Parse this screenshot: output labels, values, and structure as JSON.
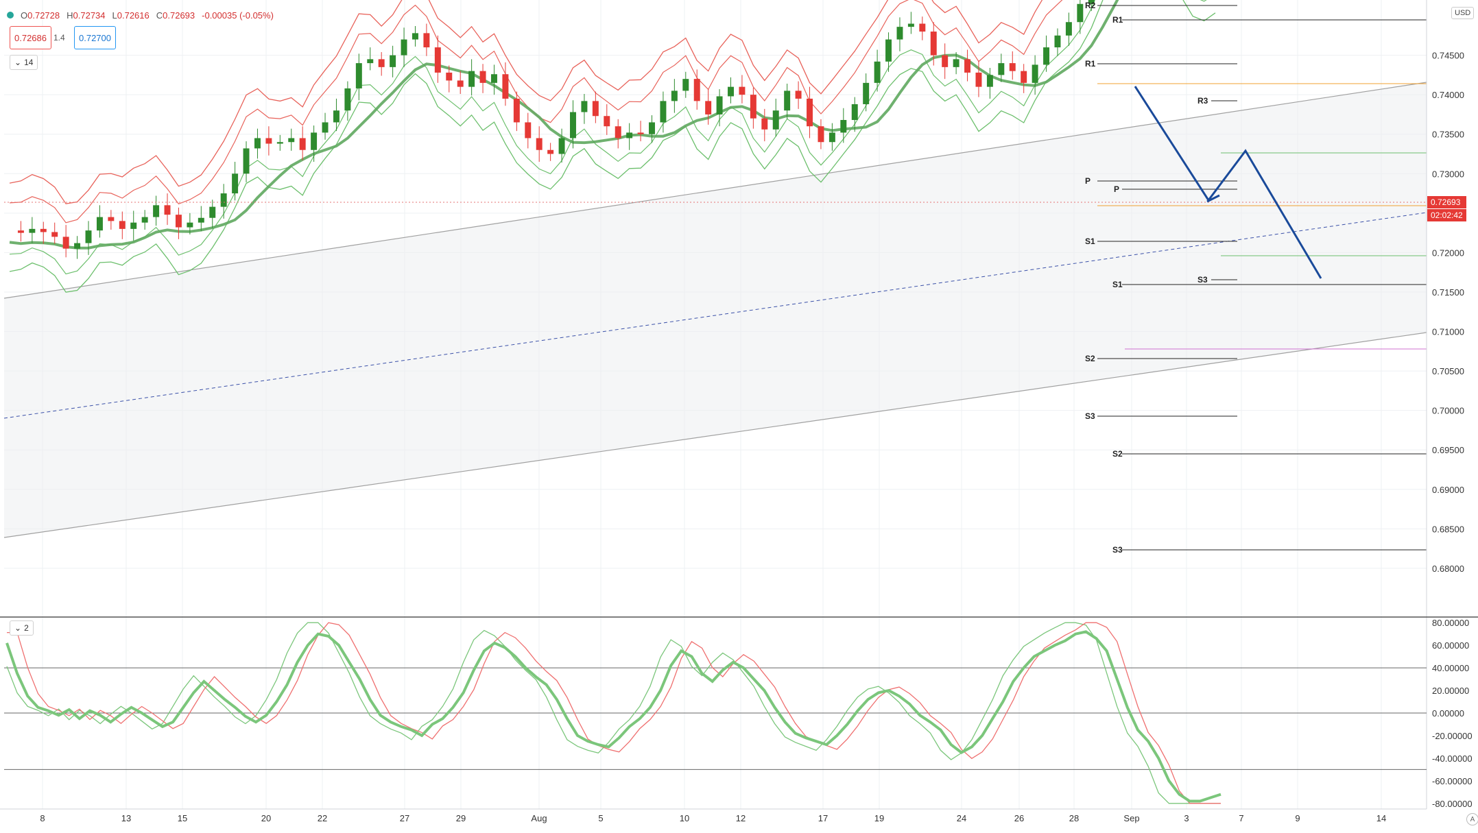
{
  "ohlc": {
    "o_label": "O",
    "o": "0.72728",
    "h_label": "H",
    "h": "0.72734",
    "l_label": "L",
    "l": "0.72616",
    "c_label": "C",
    "c": "0.72693",
    "change": "-0.00035 (-0.05%)"
  },
  "trade": {
    "sell": "0.72686",
    "spread": "1.4",
    "buy": "0.72700"
  },
  "indicator_labels": {
    "main": "14",
    "oscillator": "2"
  },
  "currency": "USD",
  "auto_label": "A",
  "colors": {
    "up": "#2e8b2e",
    "down": "#e53935",
    "channel": "#a0a0a0",
    "band_upper": "#e8625a",
    "band_lower": "#6cbf6c",
    "forecast": "#1a4a9a",
    "pivot": "#222222"
  },
  "chart_data": [
    {
      "type": "candlestick",
      "ylim": [
        0.674,
        0.752
      ],
      "yticks": [
        "0.74500",
        "0.74000",
        "0.73500",
        "0.73000",
        "0.72500",
        "0.72000",
        "0.71500",
        "0.71000",
        "0.70500",
        "0.70000",
        "0.69500",
        "0.69000",
        "0.68500",
        "0.68000"
      ],
      "ytick_values": [
        0.745,
        0.74,
        0.735,
        0.73,
        0.725,
        0.72,
        0.715,
        0.71,
        0.705,
        0.7,
        0.695,
        0.69,
        0.685,
        0.68
      ],
      "xticks": [
        "8",
        "13",
        "15",
        "20",
        "22",
        "27",
        "29",
        "Aug",
        "5",
        "10",
        "12",
        "17",
        "19",
        "24",
        "26",
        "28",
        "Sep",
        "3",
        "7",
        "9",
        "14"
      ],
      "last_price": "0.72693",
      "countdown": "02:02:42",
      "pivot_labels": [
        "R2",
        "R1",
        "R1",
        "R3",
        "P",
        "P",
        "S1",
        "S1",
        "S3",
        "S2",
        "S3",
        "S2",
        "S3"
      ],
      "trend_points": [
        0.7228,
        0.7225,
        0.723,
        0.7226,
        0.722,
        0.7205,
        0.7212,
        0.7228,
        0.7245,
        0.724,
        0.723,
        0.7238,
        0.7245,
        0.726,
        0.7248,
        0.7232,
        0.7238,
        0.7244,
        0.7258,
        0.7275,
        0.73,
        0.7332,
        0.7345,
        0.7338,
        0.734,
        0.7345,
        0.733,
        0.7352,
        0.7365,
        0.738,
        0.7408,
        0.744,
        0.7445,
        0.7435,
        0.745,
        0.747,
        0.7478,
        0.746,
        0.7428,
        0.7418,
        0.741,
        0.743,
        0.7415,
        0.7426,
        0.7395,
        0.7365,
        0.7345,
        0.733,
        0.7325,
        0.7345,
        0.7378,
        0.7392,
        0.7373,
        0.736,
        0.7345,
        0.7352,
        0.735,
        0.7365,
        0.7392,
        0.7405,
        0.742,
        0.7392,
        0.7375,
        0.7398,
        0.741,
        0.74,
        0.737,
        0.7356,
        0.738,
        0.7405,
        0.7395,
        0.736,
        0.734,
        0.7352,
        0.7368,
        0.7388,
        0.7415,
        0.7442,
        0.747,
        0.7486,
        0.749,
        0.748,
        0.745,
        0.7435,
        0.7445,
        0.7428,
        0.741,
        0.7425,
        0.744,
        0.743,
        0.7415,
        0.7438,
        0.746,
        0.7475,
        0.7492,
        0.7515,
        0.7545,
        0.758,
        0.762,
        0.765,
        0.7668,
        0.764,
        0.762,
        0.759,
        0.758,
        0.756,
        0.7554,
        0.756
      ]
    },
    {
      "type": "line",
      "ylim": [
        -85,
        85
      ],
      "yticks": [
        "80.00000",
        "60.00000",
        "40.00000",
        "20.00000",
        "0.00000",
        "-20.00000",
        "-40.00000",
        "-60.00000",
        "-80.00000"
      ],
      "ytick_values": [
        80,
        60,
        40,
        20,
        0,
        -20,
        -40,
        -60,
        -80
      ],
      "levels": [
        40,
        0,
        -50
      ],
      "series_points": [
        62,
        35,
        15,
        5,
        2,
        -2,
        3,
        -5,
        2,
        -2,
        -8,
        -1,
        5,
        0,
        -6,
        -12,
        -8,
        5,
        18,
        28,
        20,
        12,
        5,
        -3,
        -8,
        -2,
        10,
        25,
        45,
        60,
        70,
        68,
        60,
        45,
        30,
        12,
        -2,
        -8,
        -12,
        -15,
        -20,
        -10,
        -5,
        5,
        18,
        38,
        55,
        62,
        58,
        50,
        40,
        32,
        25,
        12,
        -5,
        -20,
        -25,
        -28,
        -30,
        -22,
        -12,
        -5,
        5,
        20,
        42,
        55,
        50,
        35,
        28,
        38,
        45,
        40,
        30,
        20,
        5,
        -8,
        -18,
        -22,
        -25,
        -28,
        -20,
        -10,
        2,
        12,
        18,
        20,
        15,
        8,
        -2,
        -8,
        -15,
        -28,
        -35,
        -30,
        -20,
        -5,
        10,
        28,
        40,
        50,
        55,
        60,
        64,
        70,
        72,
        66,
        55,
        30,
        5,
        -15,
        -25,
        -40,
        -60,
        -72,
        -78,
        -78,
        -75,
        -72
      ]
    }
  ]
}
